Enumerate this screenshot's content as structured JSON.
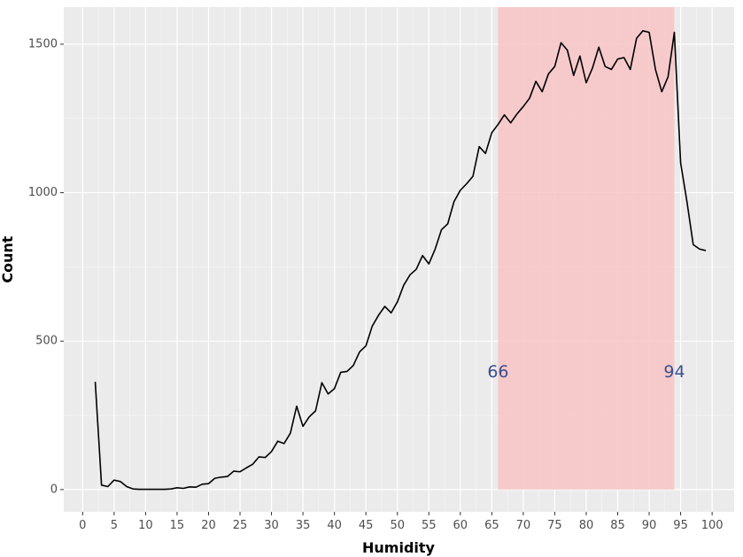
{
  "chart_data": {
    "type": "line",
    "xlabel": "Humidity",
    "ylabel": "Count",
    "xlim": [
      -3,
      103.5
    ],
    "ylim": [
      -75,
      1625
    ],
    "x_ticks": [
      0,
      5,
      10,
      15,
      20,
      25,
      30,
      35,
      40,
      45,
      50,
      55,
      60,
      65,
      70,
      75,
      80,
      85,
      90,
      95,
      100
    ],
    "x_tick_labels": [
      "0",
      "5",
      "10",
      "15",
      "20",
      "25",
      "30",
      "35",
      "40",
      "45",
      "50",
      "55",
      "60",
      "65",
      "70",
      "75",
      "80",
      "85",
      "90",
      "95",
      "100"
    ],
    "y_ticks": [
      0,
      500,
      1000,
      1500
    ],
    "y_tick_labels": [
      "0",
      "500",
      "1000",
      "1500"
    ],
    "grid": true,
    "background": "#ebebeb",
    "line_color": "#000000",
    "shaded_region": {
      "x_start": 66,
      "x_end": 94,
      "color": "#f8c4c6"
    },
    "annotations": [
      {
        "text": "66",
        "x": 66,
        "y": 395
      },
      {
        "text": "94",
        "x": 94,
        "y": 395
      }
    ],
    "x": [
      2,
      3,
      4,
      5,
      6,
      7,
      8,
      9,
      10,
      11,
      12,
      13,
      14,
      15,
      16,
      17,
      18,
      19,
      20,
      21,
      22,
      23,
      24,
      25,
      26,
      27,
      28,
      29,
      30,
      31,
      32,
      33,
      34,
      35,
      36,
      37,
      38,
      39,
      40,
      41,
      42,
      43,
      44,
      45,
      46,
      47,
      48,
      49,
      50,
      51,
      52,
      53,
      54,
      55,
      56,
      57,
      58,
      59,
      60,
      61,
      62,
      63,
      64,
      65,
      66,
      67,
      68,
      69,
      70,
      71,
      72,
      73,
      74,
      75,
      76,
      77,
      78,
      79,
      80,
      81,
      82,
      83,
      84,
      85,
      86,
      87,
      88,
      89,
      90,
      91,
      92,
      93,
      94,
      95,
      96,
      97,
      98,
      99
    ],
    "values": [
      363,
      15,
      10,
      32,
      27,
      10,
      2,
      1,
      1,
      1,
      1,
      1,
      2,
      6,
      4,
      9,
      8,
      18,
      20,
      38,
      42,
      44,
      62,
      60,
      73,
      85,
      110,
      108,
      128,
      163,
      155,
      190,
      281,
      213,
      245,
      265,
      360,
      322,
      340,
      395,
      398,
      418,
      464,
      484,
      550,
      587,
      617,
      595,
      632,
      688,
      723,
      742,
      788,
      760,
      810,
      875,
      895,
      970,
      1008,
      1030,
      1055,
      1155,
      1132,
      1202,
      1230,
      1262,
      1235,
      1265,
      1290,
      1318,
      1375,
      1340,
      1400,
      1425,
      1505,
      1480,
      1395,
      1460,
      1370,
      1420,
      1490,
      1425,
      1415,
      1450,
      1455,
      1415,
      1520,
      1545,
      1540,
      1415,
      1340,
      1390,
      1540,
      1100,
      970,
      825,
      810,
      805
    ]
  }
}
